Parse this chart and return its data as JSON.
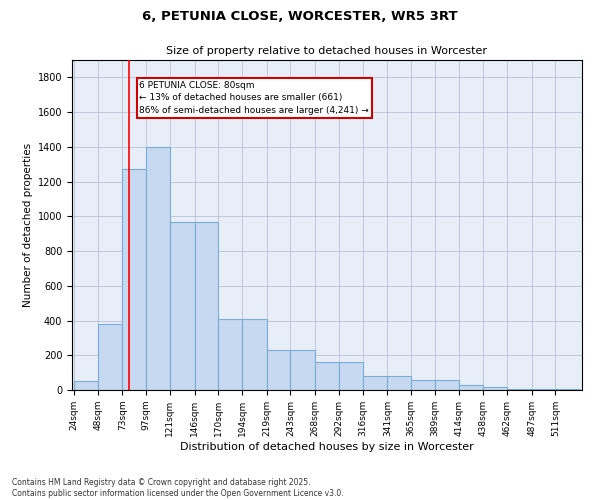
{
  "title": "6, PETUNIA CLOSE, WORCESTER, WR5 3RT",
  "subtitle": "Size of property relative to detached houses in Worcester",
  "xlabel": "Distribution of detached houses by size in Worcester",
  "ylabel": "Number of detached properties",
  "footer_line1": "Contains HM Land Registry data © Crown copyright and database right 2025.",
  "footer_line2": "Contains public sector information licensed under the Open Government Licence v3.0.",
  "bins": [
    24,
    48,
    73,
    97,
    121,
    146,
    170,
    194,
    219,
    243,
    268,
    292,
    316,
    341,
    365,
    389,
    414,
    438,
    462,
    487,
    511
  ],
  "values": [
    50,
    380,
    1270,
    1400,
    970,
    970,
    410,
    410,
    230,
    230,
    160,
    160,
    80,
    80,
    60,
    60,
    30,
    15,
    8,
    5,
    5
  ],
  "bar_color": "#c6d9f0",
  "bar_edge_color": "#7aadd4",
  "grid_color": "#b0b8d0",
  "red_line_x": 80,
  "annotation_text": "6 PETUNIA CLOSE: 80sqm\n← 13% of detached houses are smaller (661)\n86% of semi-detached houses are larger (4,241) →",
  "annotation_box_color": "#ffffff",
  "annotation_box_edge": "#cc0000",
  "ylim": [
    0,
    1900
  ],
  "yticks": [
    0,
    200,
    400,
    600,
    800,
    1000,
    1200,
    1400,
    1600,
    1800
  ],
  "background_color": "#ffffff",
  "plot_bg_color": "#e8eef8"
}
